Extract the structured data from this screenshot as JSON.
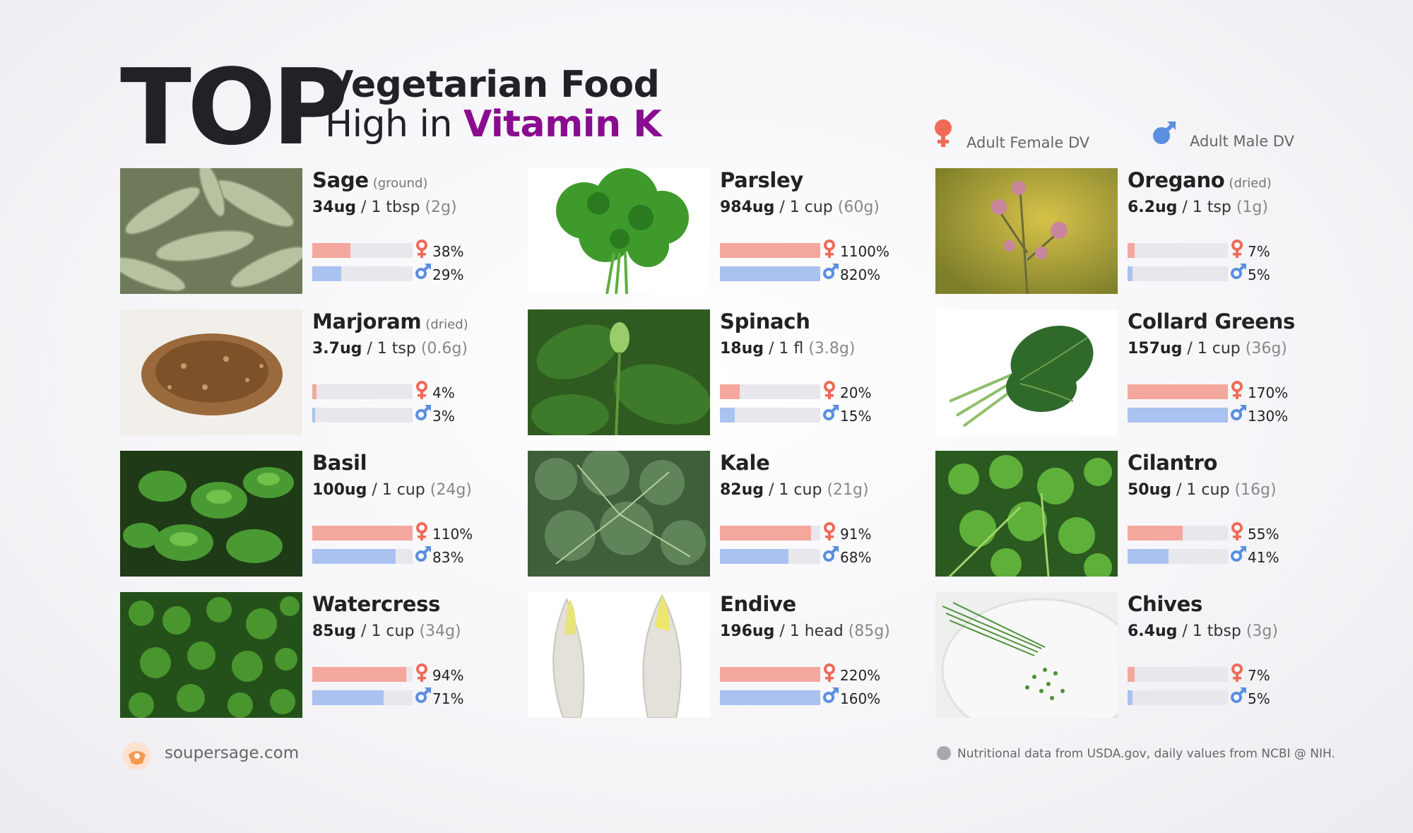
{
  "header": {
    "top_word": "TOP",
    "line1": "Vegetarian Food",
    "line2_prefix": "High in ",
    "line2_accent": "Vitamin K",
    "accent_color": "#8a0c8f"
  },
  "legend": {
    "female_label": "Adult Female DV",
    "male_label": "Adult Male DV",
    "female_icon": "female-symbol-icon",
    "male_icon": "male-symbol-icon",
    "female_color": "#f06a58",
    "male_color": "#5a8ee0"
  },
  "foods": [
    {
      "name": "Sage",
      "note": "(ground)",
      "amount": "34ug",
      "serving": "/ 1 tbsp",
      "weight": "(2g)",
      "female_pct": "38%",
      "male_pct": "29%",
      "female_value": 38,
      "male_value": 29,
      "photo": "sage-photo"
    },
    {
      "name": "Parsley",
      "note": "",
      "amount": "984ug",
      "serving": "/ 1 cup",
      "weight": "(60g)",
      "female_pct": "1100%",
      "male_pct": "820%",
      "female_value": 1100,
      "male_value": 820,
      "photo": "parsley-photo"
    },
    {
      "name": "Oregano",
      "note": "(dried)",
      "amount": "6.2ug",
      "serving": "/ 1 tsp",
      "weight": "(1g)",
      "female_pct": "7%",
      "male_pct": "5%",
      "female_value": 7,
      "male_value": 5,
      "photo": "oregano-photo"
    },
    {
      "name": "Marjoram",
      "note": "(dried)",
      "amount": "3.7ug",
      "serving": "/ 1 tsp",
      "weight": "(0.6g)",
      "female_pct": "4%",
      "male_pct": "3%",
      "female_value": 4,
      "male_value": 3,
      "photo": "marjoram-photo"
    },
    {
      "name": "Spinach",
      "note": "",
      "amount": "18ug",
      "serving": "/ 1 fl",
      "weight": "(3.8g)",
      "female_pct": "20%",
      "male_pct": "15%",
      "female_value": 20,
      "male_value": 15,
      "photo": "spinach-photo"
    },
    {
      "name": "Collard Greens",
      "note": "",
      "amount": "157ug",
      "serving": "/ 1 cup",
      "weight": "(36g)",
      "female_pct": "170%",
      "male_pct": "130%",
      "female_value": 170,
      "male_value": 130,
      "photo": "collard-greens-photo"
    },
    {
      "name": "Basil",
      "note": "",
      "amount": "100ug",
      "serving": "/ 1 cup",
      "weight": "(24g)",
      "female_pct": "110%",
      "male_pct": "83%",
      "female_value": 110,
      "male_value": 83,
      "photo": "basil-photo"
    },
    {
      "name": "Kale",
      "note": "",
      "amount": "82ug",
      "serving": "/ 1 cup",
      "weight": "(21g)",
      "female_pct": "91%",
      "male_pct": "68%",
      "female_value": 91,
      "male_value": 68,
      "photo": "kale-photo"
    },
    {
      "name": "Cilantro",
      "note": "",
      "amount": "50ug",
      "serving": "/ 1 cup",
      "weight": "(16g)",
      "female_pct": "55%",
      "male_pct": "41%",
      "female_value": 55,
      "male_value": 41,
      "photo": "cilantro-photo"
    },
    {
      "name": "Watercress",
      "note": "",
      "amount": "85ug",
      "serving": "/ 1 cup",
      "weight": "(34g)",
      "female_pct": "94%",
      "male_pct": "71%",
      "female_value": 94,
      "male_value": 71,
      "photo": "watercress-photo"
    },
    {
      "name": "Endive",
      "note": "",
      "amount": "196ug",
      "serving": "/ 1 head",
      "weight": "(85g)",
      "female_pct": "220%",
      "male_pct": "160%",
      "female_value": 220,
      "male_value": 160,
      "photo": "endive-photo"
    },
    {
      "name": "Chives",
      "note": "",
      "amount": "6.4ug",
      "serving": "/ 1 tbsp",
      "weight": "(3g)",
      "female_pct": "7%",
      "male_pct": "5%",
      "female_value": 7,
      "male_value": 5,
      "photo": "chives-photo"
    }
  ],
  "footer": {
    "site": "soupersage.com",
    "source_note": "Nutritional data from USDA.gov, daily values from NCBI @ NIH.",
    "logo_icon": "soupersage-logo-icon"
  }
}
